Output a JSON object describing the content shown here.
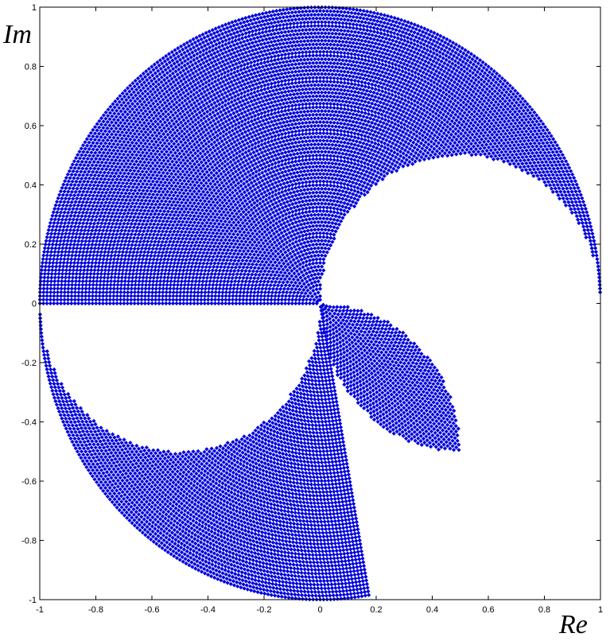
{
  "chart_data": {
    "type": "scatter",
    "title": "",
    "xlabel": "Re",
    "ylabel": "Im",
    "xlim": [
      -1,
      1
    ],
    "ylim": [
      -1,
      1
    ],
    "grid": false,
    "legend": "none",
    "marker": "diamond",
    "color": "#0000dd",
    "xticks": [
      "-1",
      "-0.8",
      "-0.6",
      "-0.4",
      "-0.2",
      "0",
      "0.2",
      "0.4",
      "0.6",
      "0.8",
      "1"
    ],
    "yticks": [
      "-1",
      "-0.8",
      "-0.6",
      "-0.4",
      "-0.2",
      "0",
      "0.2",
      "0.4",
      "0.6",
      "0.8",
      "1"
    ],
    "regions": [
      {
        "description": "upper crescent",
        "outer_circle": {
          "center": [
            0,
            0
          ],
          "radius": 1,
          "theta_range_deg": [
            0,
            180
          ]
        },
        "inner_circle": {
          "center": [
            0.5,
            0
          ],
          "radius": 0.5
        }
      },
      {
        "description": "lower crescent",
        "outer_circle": {
          "center": [
            0,
            0
          ],
          "radius": 1,
          "theta_range_deg": [
            180,
            280
          ]
        },
        "inner_circle": {
          "center": [
            -0.5,
            0
          ],
          "radius": 0.5
        }
      },
      {
        "description": "lens",
        "circle_a": {
          "center": [
            0.5,
            0
          ],
          "radius": 0.5
        },
        "circle_b": {
          "center": [
            0,
            -0.5
          ],
          "radius": 0.5
        },
        "extent": [
          [
            0,
            0
          ],
          [
            0.58,
            -0.5
          ]
        ]
      }
    ]
  }
}
